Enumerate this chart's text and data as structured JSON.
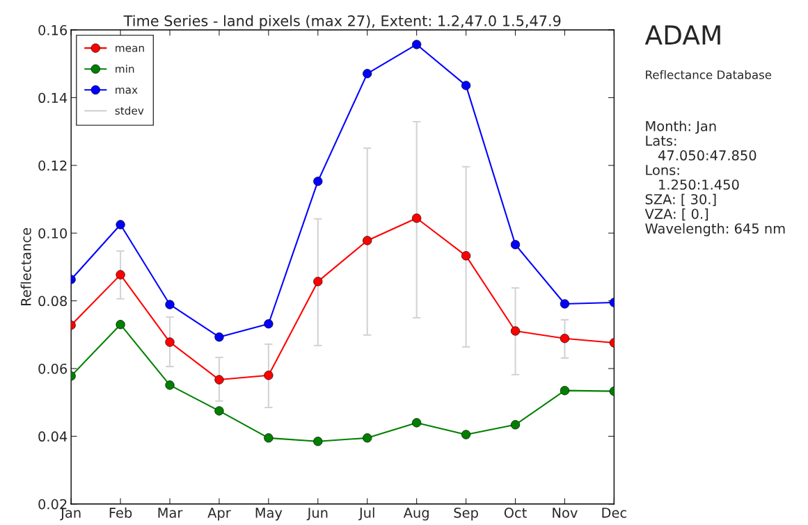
{
  "chart_data": {
    "type": "line",
    "title": "Time Series - land pixels (max 27), Extent: 1.2,47.0 1.5,47.9",
    "ylabel": "Reflectance",
    "categories": [
      "Jan",
      "Feb",
      "Mar",
      "Apr",
      "May",
      "Jun",
      "Jul",
      "Aug",
      "Sep",
      "Oct",
      "Nov",
      "Dec"
    ],
    "series": [
      {
        "name": "mean",
        "color": "#ff0000",
        "values": [
          0.0728,
          0.0877,
          0.0678,
          0.0567,
          0.058,
          0.0857,
          0.0978,
          0.1044,
          0.0933,
          0.0711,
          0.0689,
          0.0676
        ],
        "errors": [
          null,
          [
            0.0806,
            0.0947
          ],
          [
            0.0606,
            0.0752
          ],
          [
            0.0504,
            0.0633
          ],
          [
            0.0485,
            0.0672
          ],
          [
            0.0668,
            0.1042
          ],
          [
            0.0699,
            0.1251
          ],
          [
            0.075,
            0.1329
          ],
          [
            0.0664,
            0.1196
          ],
          [
            0.0582,
            0.0838
          ],
          [
            0.0631,
            0.0744
          ],
          null
        ]
      },
      {
        "name": "min",
        "color": "#008000",
        "values": [
          0.0578,
          0.073,
          0.0551,
          0.0475,
          0.0395,
          0.0385,
          0.0395,
          0.044,
          0.0405,
          0.0434,
          0.0535,
          0.0533
        ]
      },
      {
        "name": "max",
        "color": "#0000ff",
        "values": [
          0.0863,
          0.1025,
          0.0789,
          0.0693,
          0.0732,
          0.1153,
          0.1471,
          0.1557,
          0.1436,
          0.0966,
          0.0791,
          0.0795
        ]
      }
    ],
    "annotations": [
      "stdev",
      "ADAM",
      "Reflectance Database",
      "Month: Jan\nLats:\n   47.050:47.850\nLons:\n   1.250:1.450\nSZA: [ 30.]\nVZA: [ 0.]\nWavelength: 645 nm"
    ],
    "ylim": [
      0.02,
      0.16
    ],
    "yticks": [
      0.02,
      0.04,
      0.06,
      0.08,
      {
        "value": 0.1,
        "label": "0.10"
      },
      0.12,
      0.14,
      0.16
    ],
    "grid": false,
    "legend": "top left",
    "marker": "circle",
    "line_style": "solid"
  }
}
